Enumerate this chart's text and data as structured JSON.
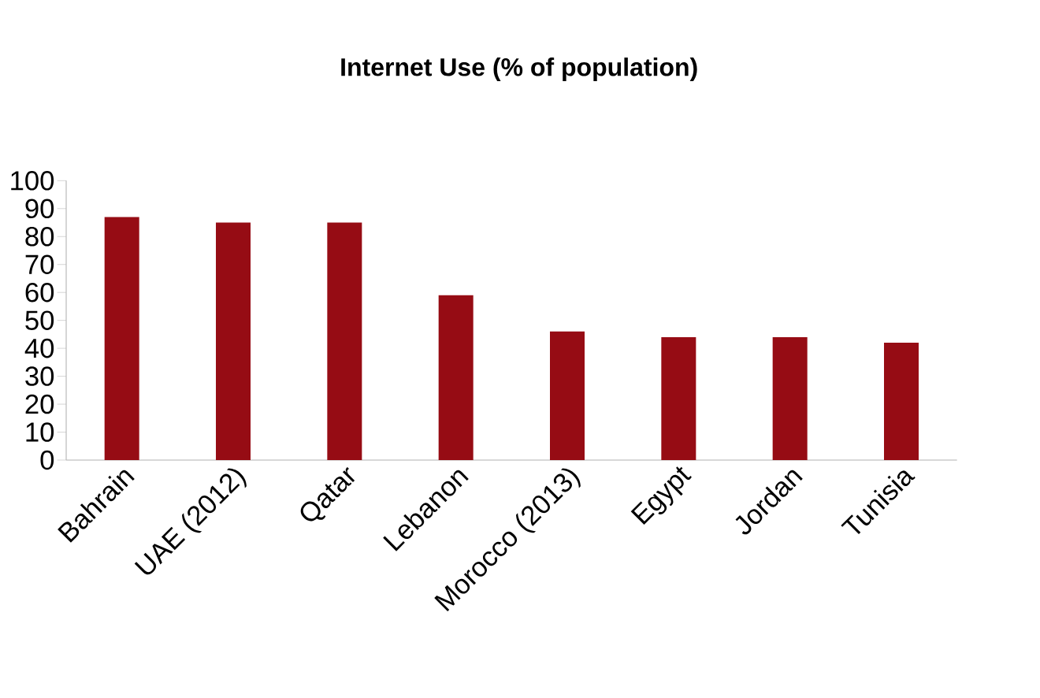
{
  "chart_data": {
    "type": "bar",
    "title": "Internet Use (% of  population)",
    "categories": [
      "Bahrain",
      "UAE (2012)",
      "Qatar",
      "Lebanon",
      "Morocco (2013)",
      "Egypt",
      "Jordan",
      "Tunisia"
    ],
    "values": [
      87,
      85,
      85,
      59,
      46,
      44,
      44,
      42
    ],
    "color": "#960c14",
    "ylim": [
      0,
      100
    ],
    "yticks": [
      0,
      10,
      20,
      30,
      40,
      50,
      60,
      70,
      80,
      90,
      100
    ],
    "grid": false
  }
}
